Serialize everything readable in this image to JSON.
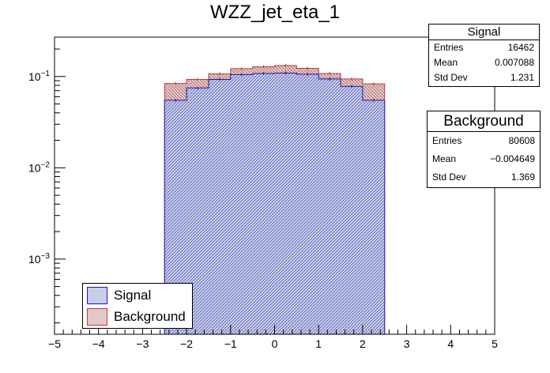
{
  "chart_data": {
    "type": "histogram",
    "title": "WZZ_jet_eta_1",
    "xlim": [
      -5,
      5
    ],
    "ylog": true,
    "ylim": [
      0.00015,
      0.27
    ],
    "x_ticks": [
      "−5",
      "−4",
      "−3",
      "−2",
      "−1",
      "0",
      "1",
      "2",
      "3",
      "4",
      "5"
    ],
    "y_ticks": [
      {
        "value": 0.1,
        "base": "10",
        "exp": "−1"
      },
      {
        "value": 0.01,
        "base": "10",
        "exp": "−2"
      },
      {
        "value": 0.001,
        "base": "10",
        "exp": "−3"
      }
    ],
    "bin_edges": [
      -2.5,
      -2.0,
      -1.5,
      -1.0,
      -0.5,
      0.0,
      0.5,
      1.0,
      1.5,
      2.0,
      2.5
    ],
    "series": [
      {
        "name": "Signal",
        "color": "#1a1ab0",
        "fill": "#9fa6d6",
        "values": [
          0.055,
          0.075,
          0.093,
          0.105,
          0.108,
          0.109,
          0.106,
          0.094,
          0.078,
          0.055
        ]
      },
      {
        "name": "Background",
        "color": "#c03a3a",
        "fill": "#d6a0a0",
        "values": [
          0.084,
          0.093,
          0.107,
          0.122,
          0.128,
          0.132,
          0.123,
          0.108,
          0.094,
          0.083
        ]
      }
    ],
    "stats": [
      {
        "title": "Signal",
        "entries": "16462",
        "mean": "0.007088",
        "std_dev": "1.231"
      },
      {
        "title": "Background",
        "entries": "80608",
        "mean": "−0.004649",
        "std_dev": "1.369"
      }
    ],
    "stat_labels": {
      "entries": "Entries",
      "mean": "Mean",
      "std_dev": "Std Dev"
    },
    "legend": [
      "Signal",
      "Background"
    ]
  }
}
